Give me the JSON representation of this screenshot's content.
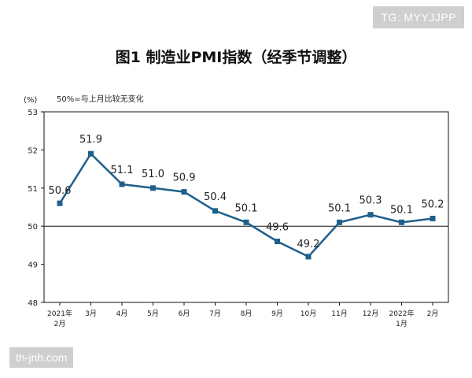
{
  "watermarks": {
    "top_right": "TG: MYYJJPP",
    "bottom_left": "th-jnh.com"
  },
  "chart_data": {
    "type": "line",
    "title": "图1 制造业PMI指数（经季节调整）",
    "y_unit": "(%)",
    "reference_note": "50%=与上月比较无变化",
    "reference_line": 50,
    "ylim": [
      48,
      53
    ],
    "y_ticks": [
      "48",
      "49",
      "50",
      "51",
      "52",
      "53"
    ],
    "categories": [
      [
        "2021年",
        "2月"
      ],
      [
        "3月"
      ],
      [
        "4月"
      ],
      [
        "5月"
      ],
      [
        "6月"
      ],
      [
        "7月"
      ],
      [
        "8月"
      ],
      [
        "9月"
      ],
      [
        "10月"
      ],
      [
        "11月"
      ],
      [
        "12月"
      ],
      [
        "2022年",
        "1月"
      ],
      [
        "2月"
      ]
    ],
    "values": [
      50.6,
      51.9,
      51.1,
      51.0,
      50.9,
      50.4,
      50.1,
      49.6,
      49.2,
      50.1,
      50.3,
      50.1,
      50.2
    ],
    "data_labels": [
      "50.6",
      "51.9",
      "51.1",
      "51.0",
      "50.9",
      "50.4",
      "50.1",
      "49.6",
      "49.2",
      "50.1",
      "50.3",
      "50.1",
      "50.2"
    ],
    "line_color": "#1f5f8b",
    "grid": false
  }
}
